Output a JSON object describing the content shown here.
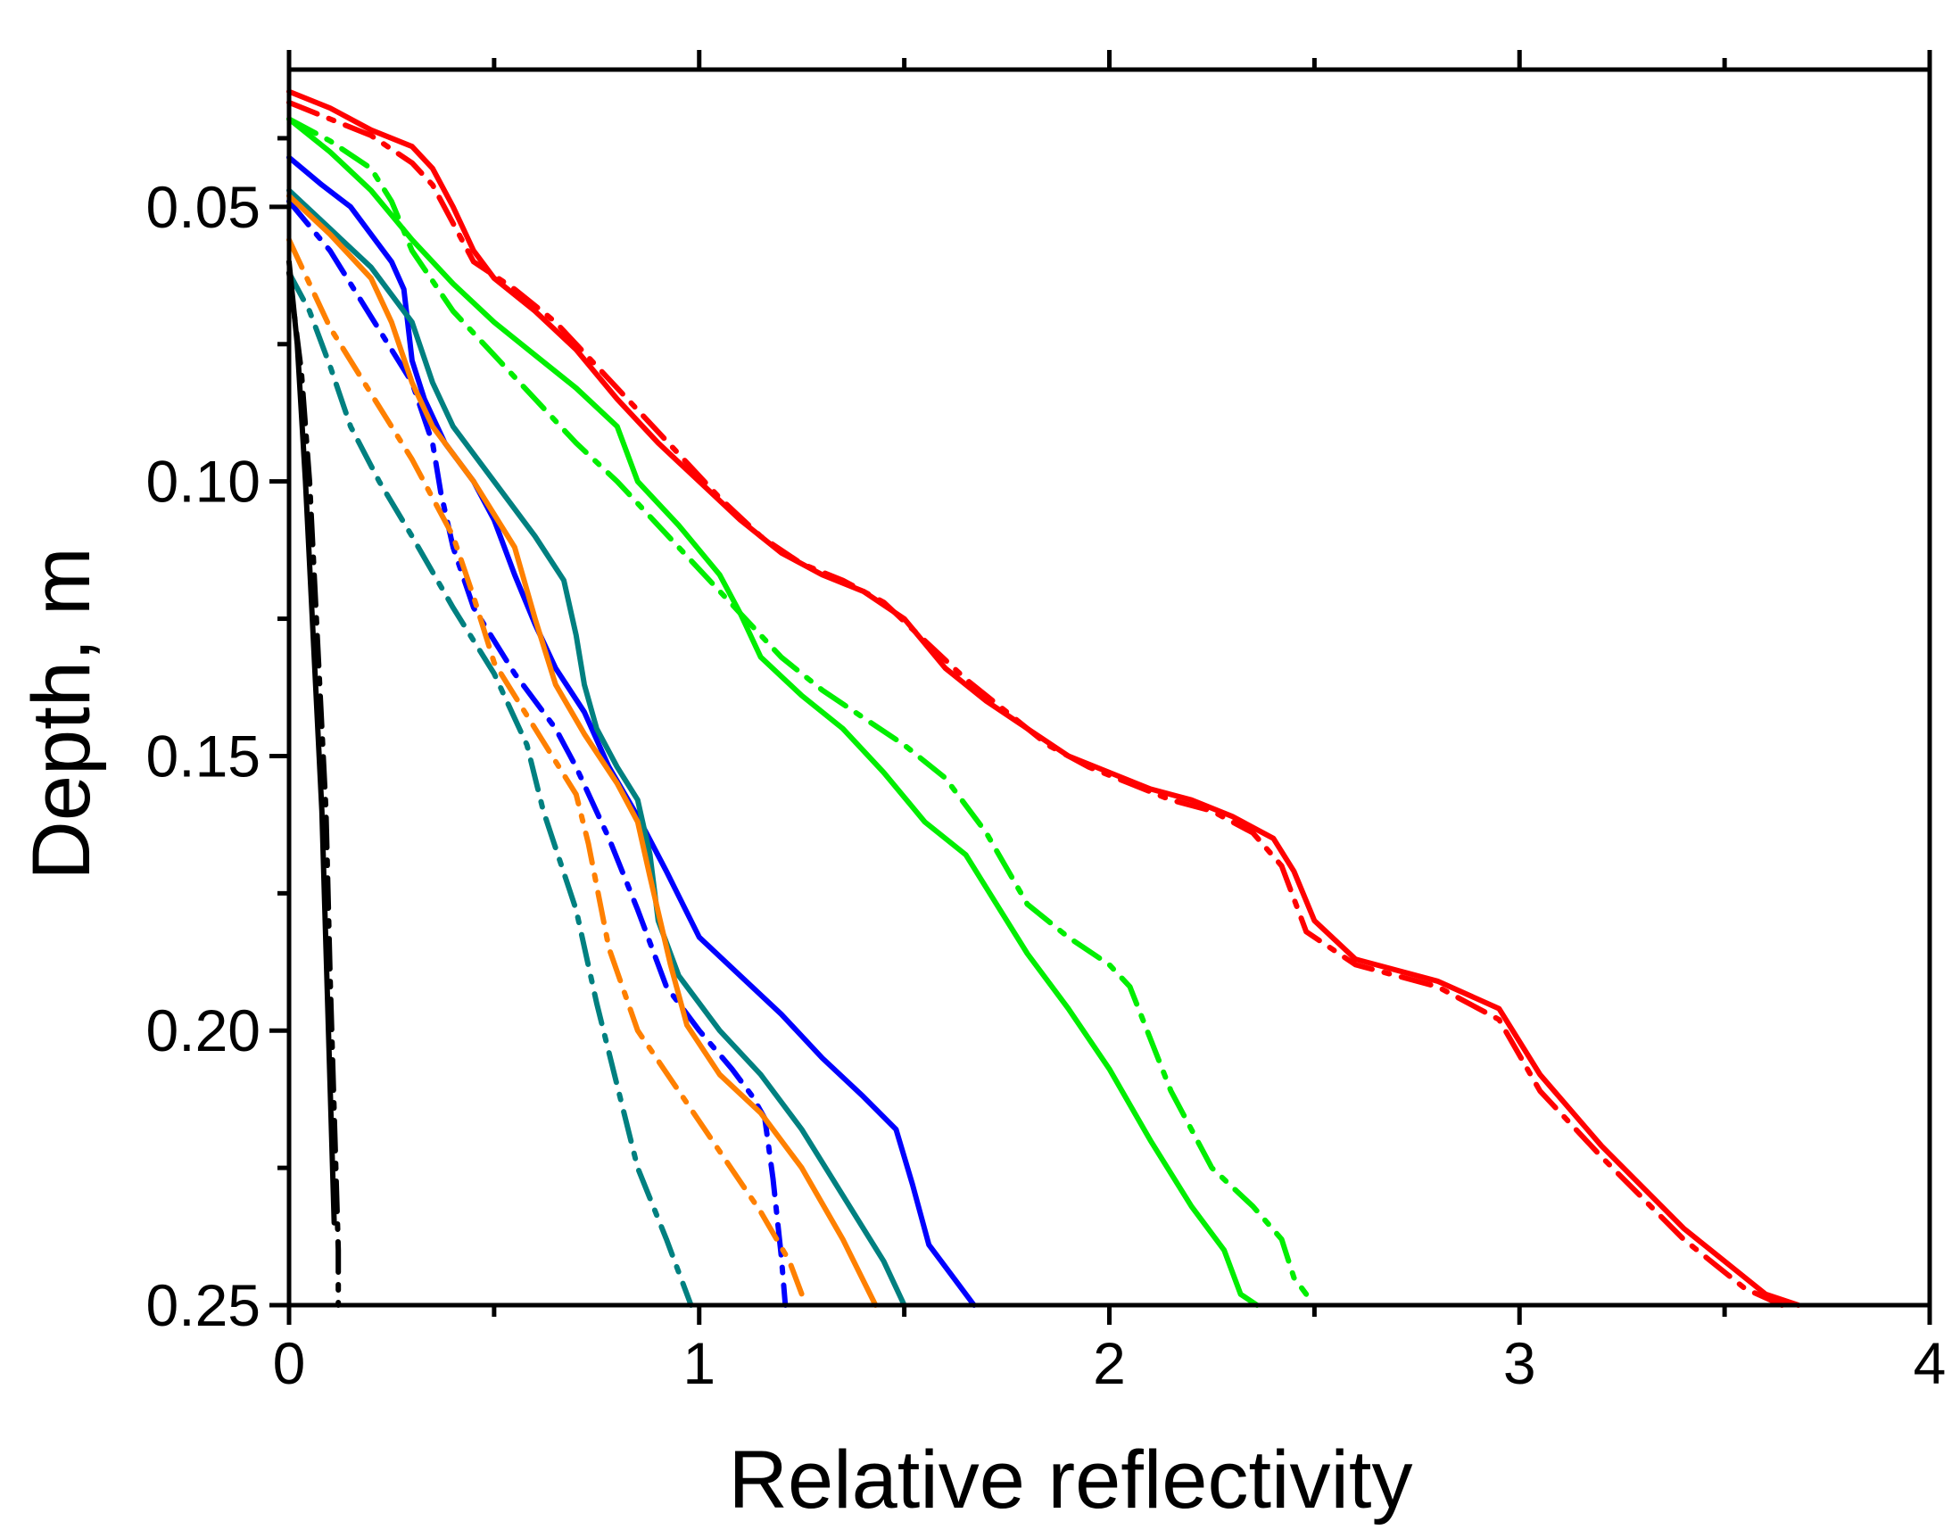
{
  "chart_data": {
    "type": "line",
    "title": "",
    "xlabel": "Relative reflectivity",
    "ylabel": "Depth, m",
    "xlim": [
      0,
      4
    ],
    "ylim": [
      0.025,
      0.25
    ],
    "y_inverted": true,
    "grid": false,
    "legend": "none",
    "x_ticks": [
      {
        "value": 0,
        "label": "0"
      },
      {
        "value": 1,
        "label": "1"
      },
      {
        "value": 2,
        "label": "2"
      },
      {
        "value": 3,
        "label": "3"
      },
      {
        "value": 4,
        "label": "4"
      }
    ],
    "y_ticks": [
      {
        "value": 0.05,
        "label": "0.05"
      },
      {
        "value": 0.1,
        "label": "0.10"
      },
      {
        "value": 0.15,
        "label": "0.15"
      },
      {
        "value": 0.2,
        "label": "0.20"
      },
      {
        "value": 0.25,
        "label": "0.25"
      }
    ],
    "series": [
      {
        "name": "red-solid",
        "color": "#ff0000",
        "style": "solid",
        "points": [
          [
            0,
            0.029
          ],
          [
            0.1,
            0.032
          ],
          [
            0.2,
            0.036
          ],
          [
            0.3,
            0.039
          ],
          [
            0.35,
            0.043
          ],
          [
            0.4,
            0.05
          ],
          [
            0.45,
            0.058
          ],
          [
            0.5,
            0.063
          ],
          [
            0.6,
            0.069
          ],
          [
            0.7,
            0.076
          ],
          [
            0.8,
            0.085
          ],
          [
            0.9,
            0.093
          ],
          [
            1.0,
            0.1
          ],
          [
            1.1,
            0.107
          ],
          [
            1.2,
            0.113
          ],
          [
            1.3,
            0.117
          ],
          [
            1.4,
            0.12
          ],
          [
            1.5,
            0.125
          ],
          [
            1.6,
            0.134
          ],
          [
            1.7,
            0.14
          ],
          [
            1.8,
            0.145
          ],
          [
            1.9,
            0.15
          ],
          [
            2.0,
            0.153
          ],
          [
            2.1,
            0.156
          ],
          [
            2.2,
            0.158
          ],
          [
            2.3,
            0.161
          ],
          [
            2.4,
            0.165
          ],
          [
            2.45,
            0.171
          ],
          [
            2.5,
            0.18
          ],
          [
            2.6,
            0.187
          ],
          [
            2.8,
            0.191
          ],
          [
            2.95,
            0.196
          ],
          [
            3.05,
            0.208
          ],
          [
            3.2,
            0.221
          ],
          [
            3.4,
            0.236
          ],
          [
            3.6,
            0.248
          ],
          [
            3.68,
            0.25
          ]
        ]
      },
      {
        "name": "red-dashdot",
        "color": "#ff0000",
        "style": "dashdot",
        "points": [
          [
            0,
            0.031
          ],
          [
            0.1,
            0.034
          ],
          [
            0.2,
            0.037
          ],
          [
            0.3,
            0.042
          ],
          [
            0.35,
            0.046
          ],
          [
            0.4,
            0.053
          ],
          [
            0.45,
            0.06
          ],
          [
            0.55,
            0.065
          ],
          [
            0.65,
            0.071
          ],
          [
            0.75,
            0.079
          ],
          [
            0.85,
            0.087
          ],
          [
            0.95,
            0.095
          ],
          [
            1.05,
            0.103
          ],
          [
            1.15,
            0.11
          ],
          [
            1.25,
            0.115
          ],
          [
            1.35,
            0.118
          ],
          [
            1.45,
            0.122
          ],
          [
            1.55,
            0.129
          ],
          [
            1.65,
            0.136
          ],
          [
            1.75,
            0.142
          ],
          [
            1.85,
            0.148
          ],
          [
            1.95,
            0.152
          ],
          [
            2.05,
            0.155
          ],
          [
            2.15,
            0.158
          ],
          [
            2.25,
            0.16
          ],
          [
            2.35,
            0.164
          ],
          [
            2.42,
            0.17
          ],
          [
            2.48,
            0.182
          ],
          [
            2.6,
            0.188
          ],
          [
            2.8,
            0.192
          ],
          [
            2.95,
            0.198
          ],
          [
            3.05,
            0.211
          ],
          [
            3.2,
            0.223
          ],
          [
            3.4,
            0.238
          ],
          [
            3.55,
            0.247
          ],
          [
            3.64,
            0.25
          ]
        ]
      },
      {
        "name": "green-solid",
        "color": "#00ee00",
        "style": "solid",
        "points": [
          [
            0,
            0.034
          ],
          [
            0.1,
            0.04
          ],
          [
            0.2,
            0.047
          ],
          [
            0.3,
            0.056
          ],
          [
            0.4,
            0.064
          ],
          [
            0.5,
            0.071
          ],
          [
            0.6,
            0.077
          ],
          [
            0.7,
            0.083
          ],
          [
            0.8,
            0.09
          ],
          [
            0.85,
            0.1
          ],
          [
            0.95,
            0.108
          ],
          [
            1.05,
            0.117
          ],
          [
            1.1,
            0.124
          ],
          [
            1.15,
            0.132
          ],
          [
            1.25,
            0.139
          ],
          [
            1.35,
            0.145
          ],
          [
            1.45,
            0.153
          ],
          [
            1.55,
            0.162
          ],
          [
            1.65,
            0.168
          ],
          [
            1.7,
            0.174
          ],
          [
            1.8,
            0.186
          ],
          [
            1.9,
            0.196
          ],
          [
            2.0,
            0.207
          ],
          [
            2.1,
            0.22
          ],
          [
            2.2,
            0.232
          ],
          [
            2.28,
            0.24
          ],
          [
            2.32,
            0.248
          ],
          [
            2.36,
            0.25
          ]
        ]
      },
      {
        "name": "green-dashdot",
        "color": "#00ee00",
        "style": "dashdot",
        "points": [
          [
            0,
            0.034
          ],
          [
            0.1,
            0.038
          ],
          [
            0.2,
            0.043
          ],
          [
            0.25,
            0.049
          ],
          [
            0.3,
            0.058
          ],
          [
            0.4,
            0.069
          ],
          [
            0.5,
            0.077
          ],
          [
            0.6,
            0.085
          ],
          [
            0.7,
            0.093
          ],
          [
            0.8,
            0.1
          ],
          [
            0.9,
            0.108
          ],
          [
            1.0,
            0.116
          ],
          [
            1.1,
            0.124
          ],
          [
            1.2,
            0.132
          ],
          [
            1.3,
            0.138
          ],
          [
            1.4,
            0.143
          ],
          [
            1.5,
            0.148
          ],
          [
            1.6,
            0.154
          ],
          [
            1.7,
            0.164
          ],
          [
            1.8,
            0.177
          ],
          [
            1.9,
            0.183
          ],
          [
            2.0,
            0.188
          ],
          [
            2.05,
            0.192
          ],
          [
            2.15,
            0.211
          ],
          [
            2.25,
            0.225
          ],
          [
            2.35,
            0.232
          ],
          [
            2.42,
            0.238
          ],
          [
            2.45,
            0.245
          ],
          [
            2.48,
            0.248
          ]
        ]
      },
      {
        "name": "blue-solid",
        "color": "#0000ff",
        "style": "solid",
        "points": [
          [
            0,
            0.041
          ],
          [
            0.08,
            0.046
          ],
          [
            0.15,
            0.05
          ],
          [
            0.22,
            0.057
          ],
          [
            0.25,
            0.06
          ],
          [
            0.28,
            0.065
          ],
          [
            0.3,
            0.078
          ],
          [
            0.33,
            0.085
          ],
          [
            0.38,
            0.093
          ],
          [
            0.45,
            0.1
          ],
          [
            0.5,
            0.107
          ],
          [
            0.55,
            0.117
          ],
          [
            0.6,
            0.126
          ],
          [
            0.65,
            0.134
          ],
          [
            0.72,
            0.142
          ],
          [
            0.78,
            0.152
          ],
          [
            0.85,
            0.161
          ],
          [
            0.92,
            0.171
          ],
          [
            1.0,
            0.183
          ],
          [
            1.1,
            0.19
          ],
          [
            1.2,
            0.197
          ],
          [
            1.3,
            0.205
          ],
          [
            1.4,
            0.212
          ],
          [
            1.48,
            0.218
          ],
          [
            1.52,
            0.228
          ],
          [
            1.56,
            0.239
          ],
          [
            1.62,
            0.245
          ],
          [
            1.67,
            0.25
          ]
        ]
      },
      {
        "name": "blue-dashdot",
        "color": "#0000ff",
        "style": "dashdot",
        "points": [
          [
            0,
            0.049
          ],
          [
            0.1,
            0.058
          ],
          [
            0.2,
            0.07
          ],
          [
            0.3,
            0.082
          ],
          [
            0.35,
            0.093
          ],
          [
            0.37,
            0.102
          ],
          [
            0.4,
            0.112
          ],
          [
            0.45,
            0.123
          ],
          [
            0.55,
            0.135
          ],
          [
            0.65,
            0.145
          ],
          [
            0.7,
            0.152
          ],
          [
            0.78,
            0.165
          ],
          [
            0.85,
            0.178
          ],
          [
            0.92,
            0.192
          ],
          [
            1.0,
            0.2
          ],
          [
            1.08,
            0.207
          ],
          [
            1.13,
            0.212
          ],
          [
            1.16,
            0.216
          ],
          [
            1.18,
            0.227
          ],
          [
            1.2,
            0.241
          ],
          [
            1.21,
            0.25
          ]
        ]
      },
      {
        "name": "teal-solid",
        "color": "#008080",
        "style": "solid",
        "points": [
          [
            0,
            0.047
          ],
          [
            0.1,
            0.054
          ],
          [
            0.2,
            0.061
          ],
          [
            0.3,
            0.071
          ],
          [
            0.35,
            0.082
          ],
          [
            0.4,
            0.09
          ],
          [
            0.5,
            0.1
          ],
          [
            0.6,
            0.11
          ],
          [
            0.67,
            0.118
          ],
          [
            0.7,
            0.128
          ],
          [
            0.72,
            0.137
          ],
          [
            0.75,
            0.145
          ],
          [
            0.8,
            0.152
          ],
          [
            0.85,
            0.158
          ],
          [
            0.88,
            0.168
          ],
          [
            0.9,
            0.18
          ],
          [
            0.95,
            0.19
          ],
          [
            1.05,
            0.2
          ],
          [
            1.15,
            0.208
          ],
          [
            1.25,
            0.218
          ],
          [
            1.35,
            0.23
          ],
          [
            1.45,
            0.242
          ],
          [
            1.5,
            0.25
          ]
        ]
      },
      {
        "name": "teal-dashdot",
        "color": "#008080",
        "style": "dashdot",
        "points": [
          [
            0,
            0.062
          ],
          [
            0.05,
            0.069
          ],
          [
            0.1,
            0.079
          ],
          [
            0.15,
            0.09
          ],
          [
            0.22,
            0.1
          ],
          [
            0.3,
            0.11
          ],
          [
            0.4,
            0.123
          ],
          [
            0.5,
            0.135
          ],
          [
            0.58,
            0.148
          ],
          [
            0.62,
            0.16
          ],
          [
            0.7,
            0.178
          ],
          [
            0.75,
            0.195
          ],
          [
            0.8,
            0.21
          ],
          [
            0.85,
            0.225
          ],
          [
            0.92,
            0.238
          ],
          [
            0.98,
            0.25
          ]
        ]
      },
      {
        "name": "orange-solid",
        "color": "#ff8000",
        "style": "solid",
        "points": [
          [
            0,
            0.048
          ],
          [
            0.1,
            0.055
          ],
          [
            0.2,
            0.063
          ],
          [
            0.25,
            0.071
          ],
          [
            0.3,
            0.082
          ],
          [
            0.35,
            0.09
          ],
          [
            0.45,
            0.1
          ],
          [
            0.55,
            0.112
          ],
          [
            0.6,
            0.125
          ],
          [
            0.65,
            0.137
          ],
          [
            0.72,
            0.146
          ],
          [
            0.8,
            0.155
          ],
          [
            0.85,
            0.162
          ],
          [
            0.88,
            0.172
          ],
          [
            0.93,
            0.188
          ],
          [
            0.97,
            0.199
          ],
          [
            1.05,
            0.208
          ],
          [
            1.15,
            0.215
          ],
          [
            1.25,
            0.225
          ],
          [
            1.35,
            0.238
          ],
          [
            1.43,
            0.25
          ]
        ]
      },
      {
        "name": "orange-dashdot",
        "color": "#ff8000",
        "style": "dashdot",
        "points": [
          [
            0,
            0.056
          ],
          [
            0.05,
            0.064
          ],
          [
            0.1,
            0.072
          ],
          [
            0.2,
            0.084
          ],
          [
            0.3,
            0.096
          ],
          [
            0.4,
            0.11
          ],
          [
            0.45,
            0.121
          ],
          [
            0.5,
            0.133
          ],
          [
            0.6,
            0.145
          ],
          [
            0.7,
            0.157
          ],
          [
            0.73,
            0.166
          ],
          [
            0.78,
            0.185
          ],
          [
            0.85,
            0.2
          ],
          [
            0.95,
            0.211
          ],
          [
            1.05,
            0.222
          ],
          [
            1.15,
            0.233
          ],
          [
            1.22,
            0.242
          ],
          [
            1.26,
            0.25
          ]
        ]
      },
      {
        "name": "black-solid",
        "color": "#000000",
        "style": "solid",
        "points": [
          [
            0,
            0.06
          ],
          [
            0.02,
            0.075
          ],
          [
            0.04,
            0.1
          ],
          [
            0.06,
            0.13
          ],
          [
            0.08,
            0.16
          ],
          [
            0.09,
            0.185
          ],
          [
            0.1,
            0.21
          ],
          [
            0.11,
            0.235
          ]
        ]
      },
      {
        "name": "black-dashdot",
        "color": "#000000",
        "style": "dashdot",
        "points": [
          [
            0,
            0.062
          ],
          [
            0.03,
            0.08
          ],
          [
            0.05,
            0.1
          ],
          [
            0.07,
            0.13
          ],
          [
            0.09,
            0.16
          ],
          [
            0.1,
            0.19
          ],
          [
            0.11,
            0.215
          ],
          [
            0.12,
            0.24
          ],
          [
            0.12,
            0.25
          ]
        ]
      }
    ]
  }
}
